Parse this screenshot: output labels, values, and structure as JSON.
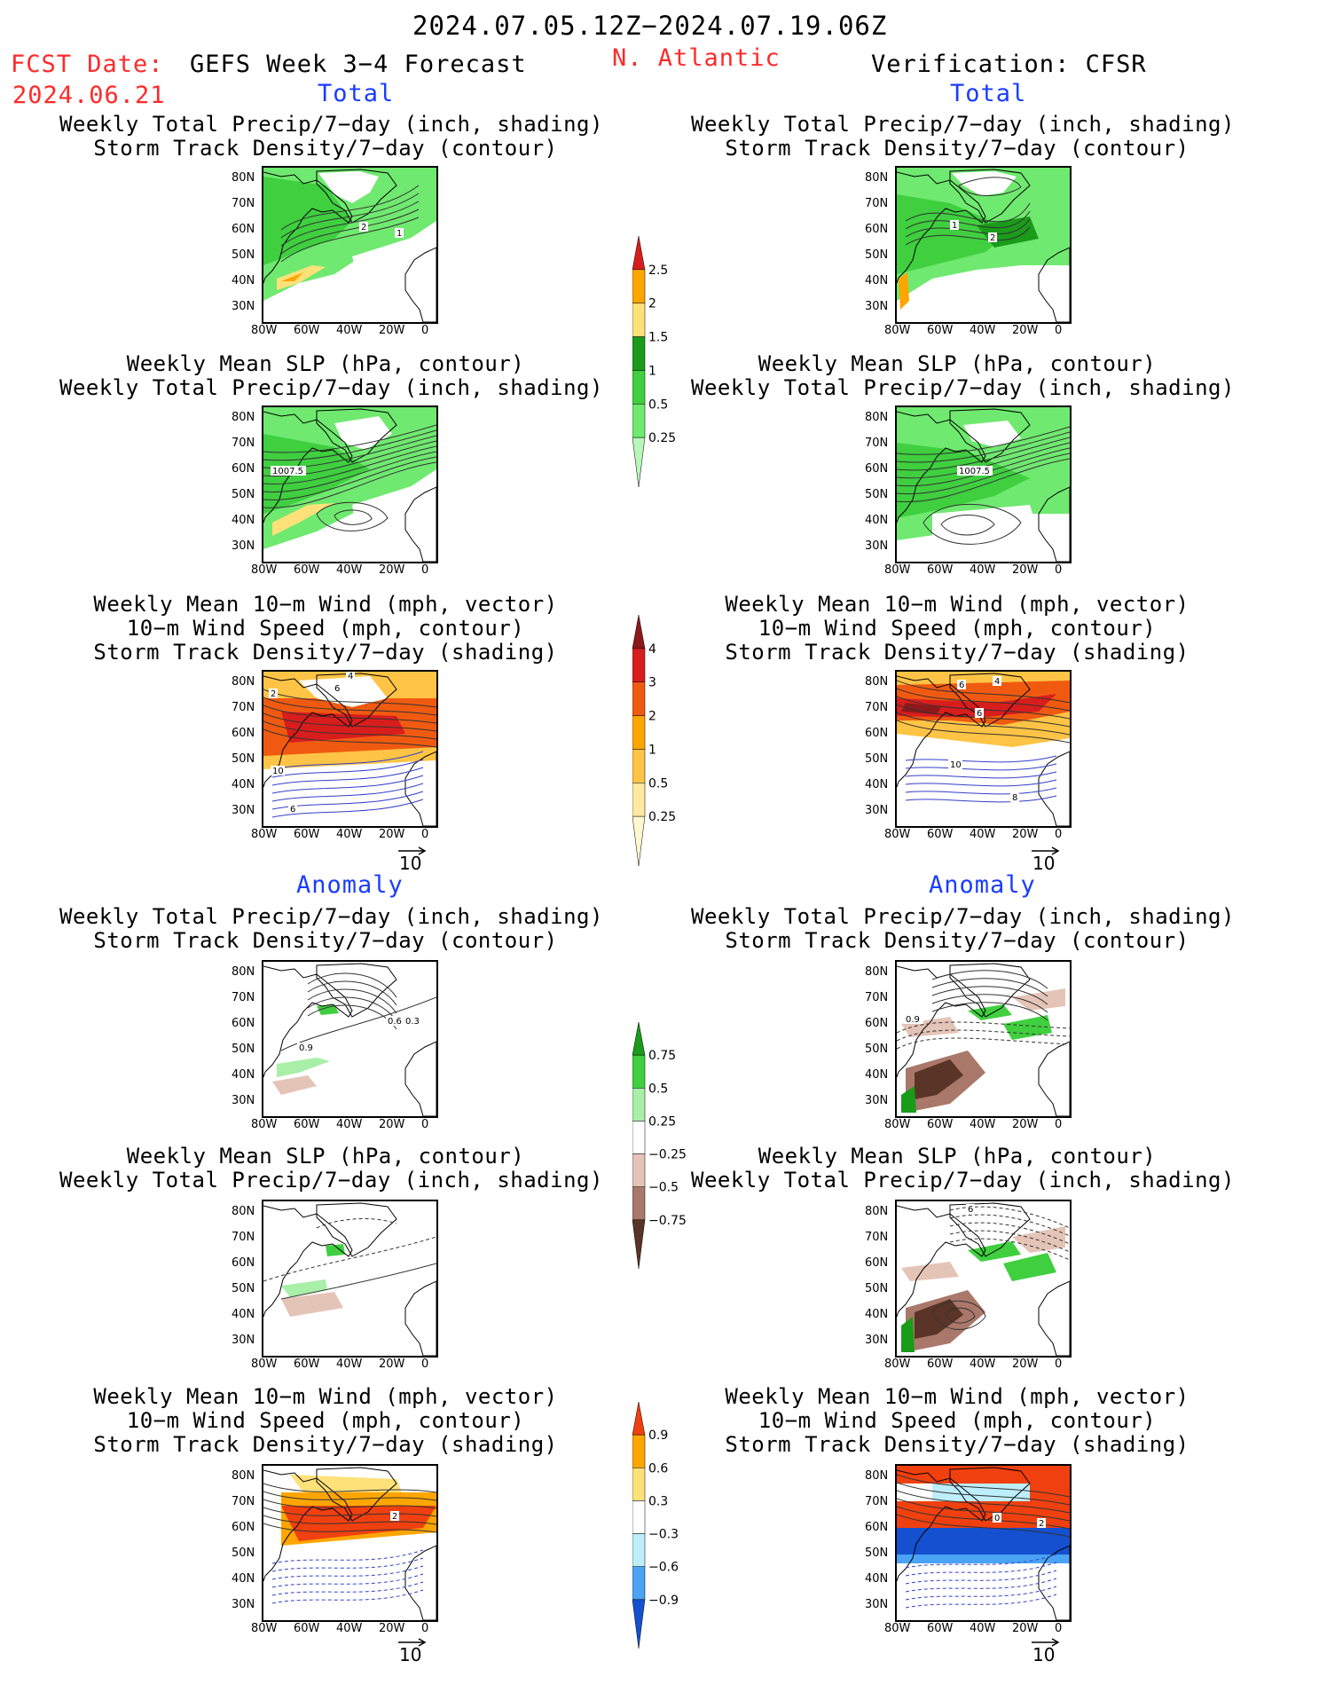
{
  "header": {
    "date_range": "2024.07.05.12Z−2024.07.19.06Z",
    "fcst_date_label": "FCST Date:",
    "fcst_date_value": "2024.06.21",
    "model_title": "GEFS Week 3−4 Forecast",
    "region": "N. Atlantic",
    "verification": "Verification: CFSR"
  },
  "sections": {
    "total": "Total",
    "anomaly": "Anomaly"
  },
  "panel_titles": {
    "precip_storm": [
      "Weekly Total Precip/7−day (inch, shading)",
      "Storm Track Density/7−day (contour)"
    ],
    "slp_precip": [
      "Weekly Mean SLP (hPa, contour)",
      "Weekly Total Precip/7−day (inch, shading)"
    ],
    "wind_storm": [
      "Weekly Mean 10−m Wind (mph, vector)",
      "10−m Wind Speed (mph, contour)",
      "Storm Track Density/7−day (shading)"
    ]
  },
  "axes": {
    "lat_labels": [
      "80N",
      "70N",
      "60N",
      "50N",
      "40N",
      "30N"
    ],
    "lon_labels": [
      "80W",
      "60W",
      "40W",
      "20W",
      "0"
    ]
  },
  "vector_ref": "10",
  "contour_labels": {
    "total_precip_gefs": [
      "2",
      "1"
    ],
    "total_precip_cfsr": [
      "1",
      "2"
    ],
    "slp": "1007.5",
    "wind_gefs": [
      "4",
      "6",
      "2",
      "10",
      "6"
    ],
    "wind_cfsr": [
      "4",
      "6",
      "6",
      "10",
      "8"
    ],
    "anom_precip_gefs": [
      "0.6",
      "0.3",
      "0.9"
    ],
    "anom_precip_cfsr": [
      "0.9"
    ],
    "anom_slp_cfsr": [
      "6"
    ],
    "anom_wind_gefs": [
      "2"
    ],
    "anom_wind_cfsr": [
      "0",
      "2"
    ]
  },
  "colorbars": {
    "precip_total": {
      "ticks": [
        "2.5",
        "2",
        "1.5",
        "1",
        "0.5",
        "0.25"
      ],
      "colors": [
        "#d81d1d",
        "#ffa500",
        "#ffe17a",
        "#1a9b1a",
        "#3fcf3f",
        "#6fe96f",
        "#b9f7b9"
      ]
    },
    "storm_total": {
      "ticks": [
        "4",
        "3",
        "2",
        "1",
        "0.5",
        "0.25"
      ],
      "colors": [
        "#8b1a1a",
        "#d81d1d",
        "#f05a10",
        "#ffa500",
        "#ffc445",
        "#ffe9a0",
        "#fff7cf"
      ]
    },
    "precip_anom": {
      "ticks": [
        "0.75",
        "0.5",
        "0.25",
        "−0.25",
        "−0.5",
        "−0.75"
      ],
      "colors": [
        "#1a9b1a",
        "#3fcf3f",
        "#a8efa8",
        "#ffffff",
        "#e5c4b8",
        "#a9786a",
        "#5a3426"
      ]
    },
    "storm_anom": {
      "ticks": [
        "0.9",
        "0.6",
        "0.3",
        "−0.3",
        "−0.6",
        "−0.9"
      ],
      "colors": [
        "#f0400f",
        "#ffa500",
        "#ffe17a",
        "#ffffff",
        "#bdeefc",
        "#4aa3f5",
        "#1450d0"
      ]
    }
  }
}
